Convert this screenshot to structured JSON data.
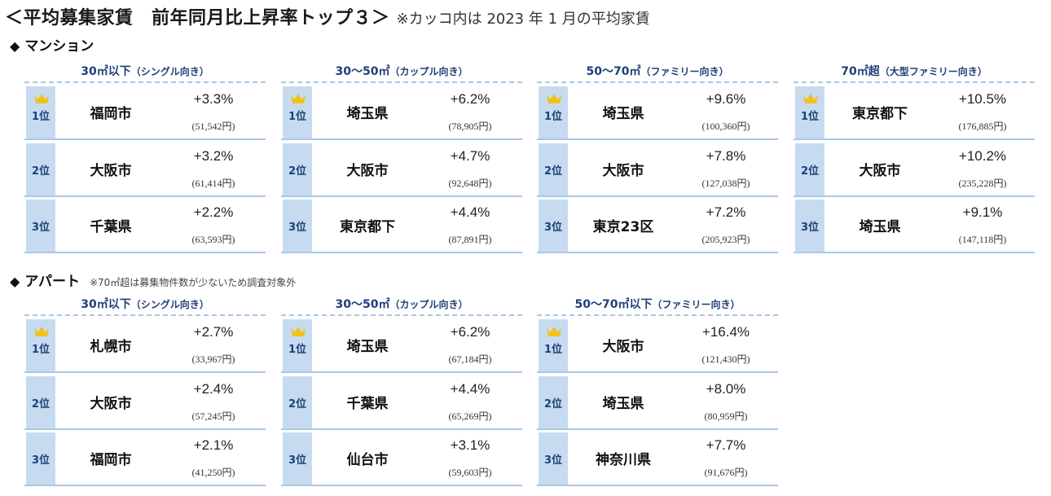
{
  "title": {
    "main": "＜平均募集家賃　前年同月比上昇率トップ３＞",
    "note": "※カッコ内は 2023 年 1 月の平均家賃"
  },
  "sections": [
    {
      "label": "マンション",
      "note": "",
      "groups": [
        {
          "head": "30㎡以下",
          "sub": "（シングル向き）",
          "rows": [
            {
              "rank": "1位",
              "city": "福岡市",
              "rate": "+3.3%",
              "rent": "(51,542円)"
            },
            {
              "rank": "2位",
              "city": "大阪市",
              "rate": "+3.2%",
              "rent": "(61,414円)"
            },
            {
              "rank": "3位",
              "city": "千葉県",
              "rate": "+2.2%",
              "rent": "(63,593円)"
            }
          ]
        },
        {
          "head": "30～50㎡",
          "sub": "（カップル向き）",
          "rows": [
            {
              "rank": "1位",
              "city": "埼玉県",
              "rate": "+6.2%",
              "rent": "(78,905円)"
            },
            {
              "rank": "2位",
              "city": "大阪市",
              "rate": "+4.7%",
              "rent": "(92,648円)"
            },
            {
              "rank": "3位",
              "city": "東京都下",
              "rate": "+4.4%",
              "rent": "(87,891円)"
            }
          ]
        },
        {
          "head": "50～70㎡",
          "sub": "（ファミリー向き）",
          "rows": [
            {
              "rank": "1位",
              "city": "埼玉県",
              "rate": "+9.6%",
              "rent": "(100,360円)"
            },
            {
              "rank": "2位",
              "city": "大阪市",
              "rate": "+7.8%",
              "rent": "(127,038円)"
            },
            {
              "rank": "3位",
              "city": "東京23区",
              "rate": "+7.2%",
              "rent": "(205,923円)"
            }
          ]
        },
        {
          "head": "70㎡超",
          "sub": "（大型ファミリー向き）",
          "rows": [
            {
              "rank": "1位",
              "city": "東京都下",
              "rate": "+10.5%",
              "rent": "(176,885円)"
            },
            {
              "rank": "2位",
              "city": "大阪市",
              "rate": "+10.2%",
              "rent": "(235,228円)"
            },
            {
              "rank": "3位",
              "city": "埼玉県",
              "rate": "+9.1%",
              "rent": "(147,118円)"
            }
          ]
        }
      ]
    },
    {
      "label": "アパート",
      "note": "※70㎡超は募集物件数が少ないため調査対象外",
      "groups": [
        {
          "head": "30㎡以下",
          "sub": "（シングル向き）",
          "rows": [
            {
              "rank": "1位",
              "city": "札幌市",
              "rate": "+2.7%",
              "rent": "(33,967円)"
            },
            {
              "rank": "2位",
              "city": "大阪市",
              "rate": "+2.4%",
              "rent": "(57,245円)"
            },
            {
              "rank": "3位",
              "city": "福岡市",
              "rate": "+2.1%",
              "rent": "(41,250円)"
            }
          ]
        },
        {
          "head": "30～50㎡",
          "sub": "（カップル向き）",
          "rows": [
            {
              "rank": "1位",
              "city": "埼玉県",
              "rate": "+6.2%",
              "rent": "(67,184円)"
            },
            {
              "rank": "2位",
              "city": "千葉県",
              "rate": "+4.4%",
              "rent": "(65,269円)"
            },
            {
              "rank": "3位",
              "city": "仙台市",
              "rate": "+3.1%",
              "rent": "(59,603円)"
            }
          ]
        },
        {
          "head": "50～70㎡以下",
          "sub": "（ファミリー向き）",
          "rows": [
            {
              "rank": "1位",
              "city": "大阪市",
              "rate": "+16.4%",
              "rent": "(121,430円)"
            },
            {
              "rank": "2位",
              "city": "埼玉県",
              "rate": "+8.0%",
              "rent": "(80,959円)"
            },
            {
              "rank": "3位",
              "city": "神奈川県",
              "rate": "+7.7%",
              "rent": "(91,676円)"
            }
          ]
        }
      ]
    }
  ],
  "colors": {
    "rank_bg": "#c6dbef",
    "header_text": "#1e3f78",
    "divider": "#a9c8e6",
    "crown": "#f2c21a"
  },
  "icons": {
    "section_marker": "diamond-icon",
    "first_place": "crown-icon"
  }
}
